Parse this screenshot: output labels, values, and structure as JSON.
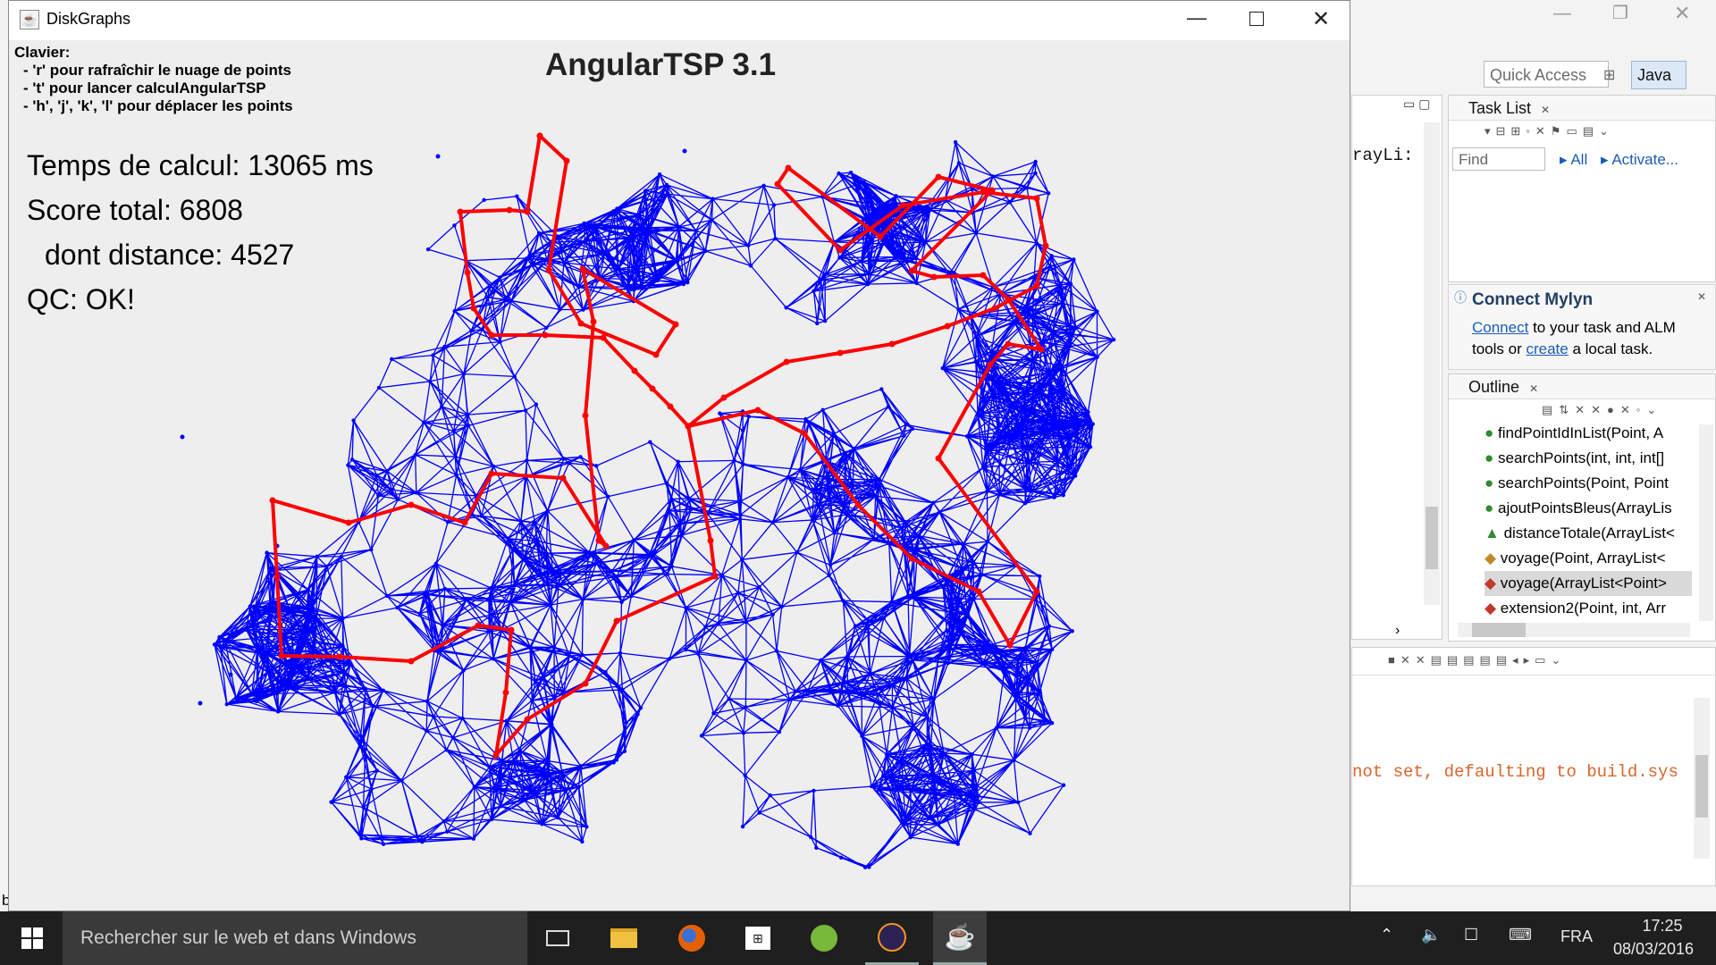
{
  "eclipse": {
    "quick_access_placeholder": "Quick Access",
    "perspective": "Java",
    "editor_snippet": "rayLi:",
    "task_list": {
      "title": "Task List",
      "find_placeholder": "Find",
      "all_label": "All",
      "activate_label": "Activate..."
    },
    "mylyn": {
      "title": "Connect Mylyn",
      "connect_link": "Connect",
      "text_1": "to your task and ALM",
      "text_2": "tools or",
      "create_link": "create",
      "text_3": "a local task."
    },
    "outline": {
      "title": "Outline",
      "items": [
        "findPointIdInList(Point, A",
        "searchPoints(int, int, int[]",
        "searchPoints(Point, Point",
        "ajoutPointsBleus(ArrayLis",
        "distanceTotale(ArrayList<",
        "voyage(Point, ArrayList<",
        "voyage(ArrayList<Point>",
        "extension2(Point, int, Arr"
      ]
    },
    "console_line": "not set, defaulting to build.sys",
    "left_edge_char": "b"
  },
  "window": {
    "title": "DiskGraphs"
  },
  "app": {
    "title": "AngularTSP 3.1",
    "keyboard_heading": "Clavier:",
    "keyboard_lines": [
      "- 'r' pour rafraîchir le nuage de points",
      "- 't' pour lancer calculAngularTSP",
      "- 'h', 'j', 'k', 'l' pour déplacer les points"
    ],
    "stats": {
      "time": "Temps de calcul: 13065 ms",
      "score": "Score total: 6808",
      "distance": "dont distance: 4527",
      "qc": "QC: OK!"
    },
    "colors": {
      "edges": "#0000ff",
      "tour": "#ff0000",
      "background": "#eeeeee"
    }
  },
  "taskbar": {
    "search_placeholder": "Rechercher sur le web et dans Windows",
    "language": "FRA",
    "time": "17:25",
    "date": "08/03/2016"
  }
}
